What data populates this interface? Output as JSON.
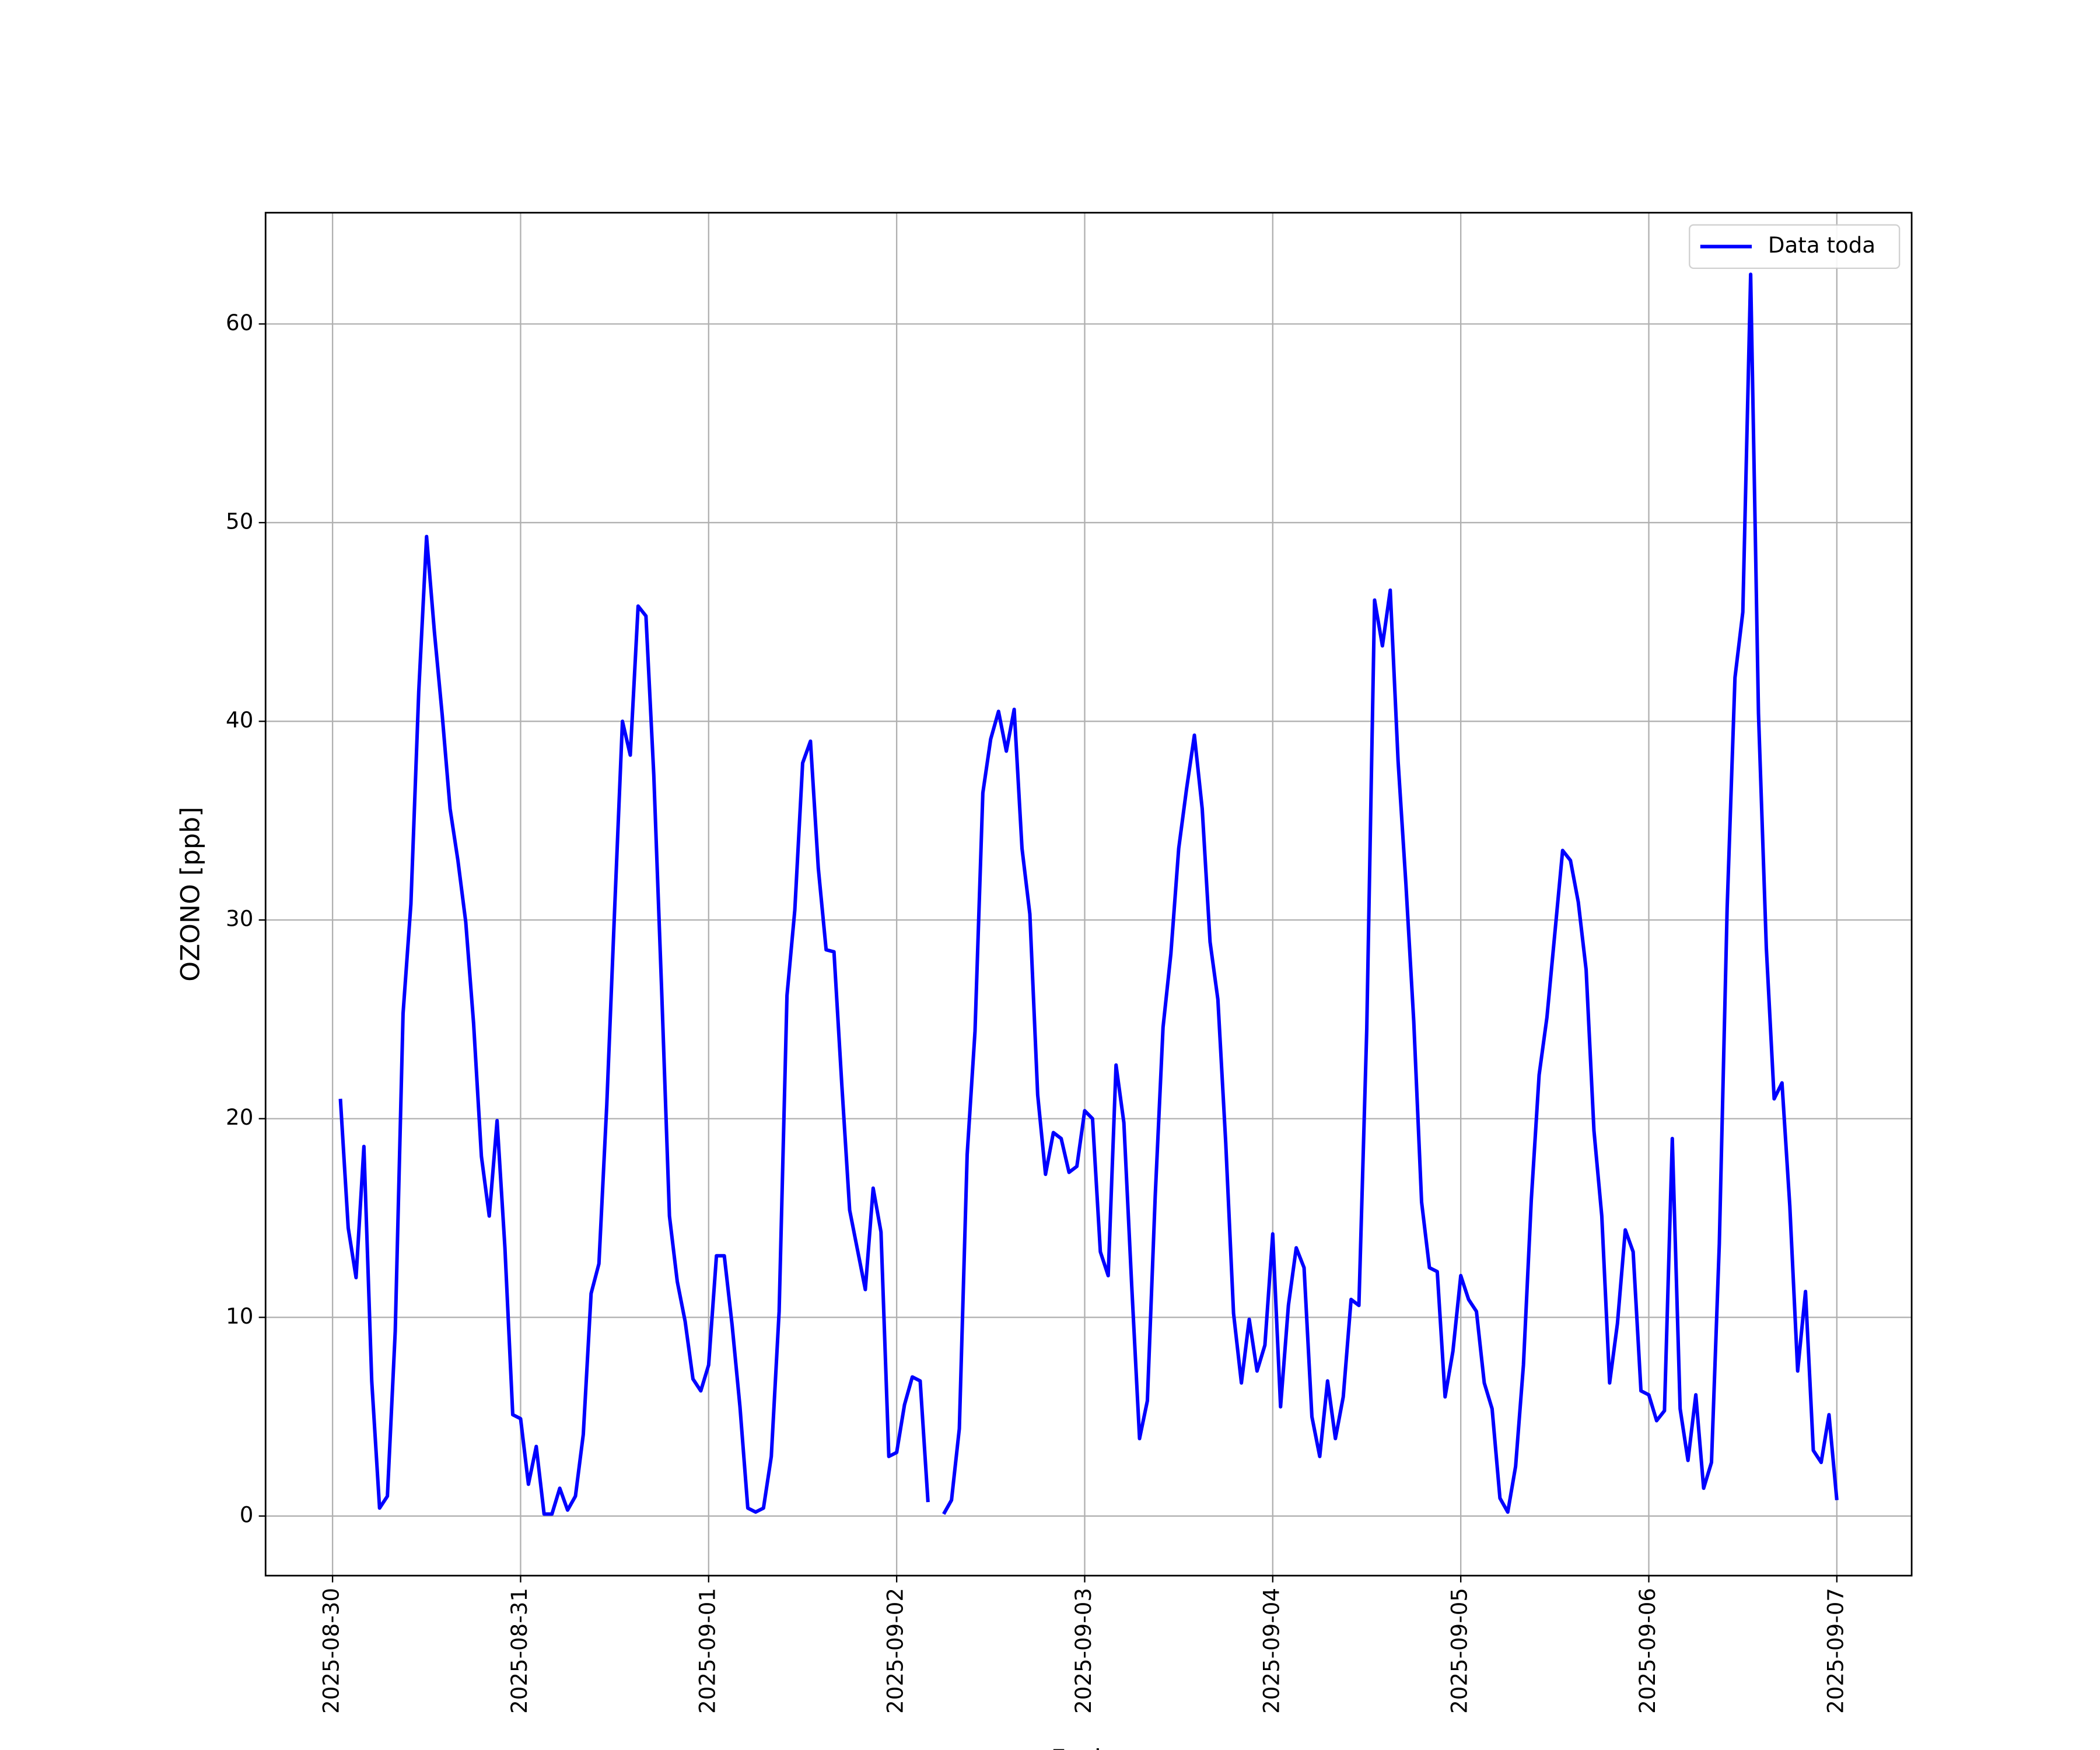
{
  "chart_data": {
    "type": "line",
    "x_label": "Fecha",
    "y_label": "OZONO [ppb]",
    "x": [
      "2025-08-30 01:00",
      "2025-08-30 02:00",
      "2025-08-30 03:00",
      "2025-08-30 04:00",
      "2025-08-30 05:00",
      "2025-08-30 06:00",
      "2025-08-30 07:00",
      "2025-08-30 08:00",
      "2025-08-30 09:00",
      "2025-08-30 10:00",
      "2025-08-30 11:00",
      "2025-08-30 12:00",
      "2025-08-30 13:00",
      "2025-08-30 14:00",
      "2025-08-30 15:00",
      "2025-08-30 16:00",
      "2025-08-30 17:00",
      "2025-08-30 18:00",
      "2025-08-30 19:00",
      "2025-08-30 20:00",
      "2025-08-30 21:00",
      "2025-08-30 22:00",
      "2025-08-30 23:00",
      "2025-08-31 00:00",
      "2025-08-31 01:00",
      "2025-08-31 02:00",
      "2025-08-31 03:00",
      "2025-08-31 04:00",
      "2025-08-31 05:00",
      "2025-08-31 06:00",
      "2025-08-31 07:00",
      "2025-08-31 08:00",
      "2025-08-31 09:00",
      "2025-08-31 10:00",
      "2025-08-31 11:00",
      "2025-08-31 12:00",
      "2025-08-31 13:00",
      "2025-08-31 14:00",
      "2025-08-31 15:00",
      "2025-08-31 16:00",
      "2025-08-31 17:00",
      "2025-08-31 18:00",
      "2025-08-31 19:00",
      "2025-08-31 20:00",
      "2025-08-31 21:00",
      "2025-08-31 22:00",
      "2025-08-31 23:00",
      "2025-09-01 00:00",
      "2025-09-01 01:00",
      "2025-09-01 02:00",
      "2025-09-01 03:00",
      "2025-09-01 04:00",
      "2025-09-01 05:00",
      "2025-09-01 06:00",
      "2025-09-01 07:00",
      "2025-09-01 08:00",
      "2025-09-01 09:00",
      "2025-09-01 10:00",
      "2025-09-01 11:00",
      "2025-09-01 12:00",
      "2025-09-01 13:00",
      "2025-09-01 14:00",
      "2025-09-01 15:00",
      "2025-09-01 16:00",
      "2025-09-01 17:00",
      "2025-09-01 18:00",
      "2025-09-01 19:00",
      "2025-09-01 20:00",
      "2025-09-01 21:00",
      "2025-09-01 22:00",
      "2025-09-01 23:00",
      "2025-09-02 00:00",
      "2025-09-02 01:00",
      "2025-09-02 02:00",
      "2025-09-02 03:00",
      "2025-09-02 04:00",
      "2025-09-02 05:00",
      "2025-09-02 06:00",
      "2025-09-02 07:00",
      "2025-09-02 08:00",
      "2025-09-02 09:00",
      "2025-09-02 10:00",
      "2025-09-02 11:00",
      "2025-09-02 12:00",
      "2025-09-02 13:00",
      "2025-09-02 14:00",
      "2025-09-02 15:00",
      "2025-09-02 16:00",
      "2025-09-02 17:00",
      "2025-09-02 18:00",
      "2025-09-02 19:00",
      "2025-09-02 20:00",
      "2025-09-02 21:00",
      "2025-09-02 22:00",
      "2025-09-02 23:00",
      "2025-09-03 00:00",
      "2025-09-03 01:00",
      "2025-09-03 02:00",
      "2025-09-03 03:00",
      "2025-09-03 04:00",
      "2025-09-03 05:00",
      "2025-09-03 06:00",
      "2025-09-03 07:00",
      "2025-09-03 08:00",
      "2025-09-03 09:00",
      "2025-09-03 10:00",
      "2025-09-03 11:00",
      "2025-09-03 12:00",
      "2025-09-03 13:00",
      "2025-09-03 14:00",
      "2025-09-03 15:00",
      "2025-09-03 16:00",
      "2025-09-03 17:00",
      "2025-09-03 18:00",
      "2025-09-03 19:00",
      "2025-09-03 20:00",
      "2025-09-03 21:00",
      "2025-09-03 22:00",
      "2025-09-03 23:00",
      "2025-09-04 00:00",
      "2025-09-04 01:00",
      "2025-09-04 02:00",
      "2025-09-04 03:00",
      "2025-09-04 04:00",
      "2025-09-04 05:00",
      "2025-09-04 06:00",
      "2025-09-04 07:00",
      "2025-09-04 08:00",
      "2025-09-04 09:00",
      "2025-09-04 10:00",
      "2025-09-04 11:00",
      "2025-09-04 12:00",
      "2025-09-04 13:00",
      "2025-09-04 14:00",
      "2025-09-04 15:00",
      "2025-09-04 16:00",
      "2025-09-04 17:00",
      "2025-09-04 18:00",
      "2025-09-04 19:00",
      "2025-09-04 20:00",
      "2025-09-04 21:00",
      "2025-09-04 22:00",
      "2025-09-04 23:00",
      "2025-09-05 00:00",
      "2025-09-05 01:00",
      "2025-09-05 02:00",
      "2025-09-05 03:00",
      "2025-09-05 04:00",
      "2025-09-05 05:00",
      "2025-09-05 06:00",
      "2025-09-05 07:00",
      "2025-09-05 08:00",
      "2025-09-05 09:00",
      "2025-09-05 10:00",
      "2025-09-05 11:00",
      "2025-09-05 12:00",
      "2025-09-05 13:00",
      "2025-09-05 14:00",
      "2025-09-05 15:00",
      "2025-09-05 16:00",
      "2025-09-05 17:00",
      "2025-09-05 18:00",
      "2025-09-05 19:00",
      "2025-09-05 20:00",
      "2025-09-05 21:00",
      "2025-09-05 22:00",
      "2025-09-05 23:00",
      "2025-09-06 00:00",
      "2025-09-06 01:00",
      "2025-09-06 02:00",
      "2025-09-06 03:00",
      "2025-09-06 04:00",
      "2025-09-06 05:00",
      "2025-09-06 06:00",
      "2025-09-06 07:00",
      "2025-09-06 08:00",
      "2025-09-06 09:00",
      "2025-09-06 10:00",
      "2025-09-06 11:00",
      "2025-09-06 12:00",
      "2025-09-06 13:00",
      "2025-09-06 14:00",
      "2025-09-06 15:00",
      "2025-09-06 16:00",
      "2025-09-06 17:00",
      "2025-09-06 18:00",
      "2025-09-06 19:00",
      "2025-09-06 20:00",
      "2025-09-06 21:00",
      "2025-09-06 22:00",
      "2025-09-06 23:00",
      "2025-09-07 00:00"
    ],
    "series": [
      {
        "name": "Data toda",
        "color": "#0000ff",
        "values": [
          21.0,
          14.5,
          12.0,
          18.6,
          6.8,
          0.4,
          1.0,
          9.3,
          25.3,
          30.8,
          41.5,
          49.3,
          44.5,
          40.3,
          35.6,
          33.0,
          29.9,
          24.8,
          18.1,
          15.1,
          19.9,
          13.5,
          5.1,
          4.9,
          1.6,
          3.5,
          0.1,
          0.1,
          1.4,
          0.3,
          1.0,
          4.1,
          11.2,
          12.7,
          20.7,
          30.5,
          40.0,
          38.3,
          45.8,
          45.3,
          37.3,
          26.5,
          15.1,
          11.8,
          9.8,
          6.9,
          6.3,
          7.6,
          13.1,
          13.1,
          9.6,
          5.5,
          0.4,
          0.2,
          0.4,
          3.0,
          10.3,
          26.2,
          30.5,
          37.9,
          39.0,
          32.6,
          28.5,
          28.4,
          21.7,
          15.4,
          13.4,
          11.4,
          16.5,
          14.3,
          3.0,
          3.2,
          5.6,
          7.0,
          6.8,
          0.7,
          null,
          0.1,
          0.8,
          4.4,
          18.2,
          24.4,
          36.4,
          39.1,
          40.5,
          38.5,
          40.6,
          33.6,
          30.3,
          21.2,
          17.2,
          19.3,
          19.0,
          17.3,
          17.6,
          20.4,
          20.0,
          13.3,
          12.1,
          22.7,
          19.8,
          11.6,
          3.9,
          5.8,
          16.1,
          24.6,
          28.3,
          33.6,
          36.6,
          39.3,
          35.6,
          28.9,
          26.0,
          18.8,
          10.2,
          6.7,
          9.9,
          7.3,
          8.6,
          14.2,
          5.5,
          10.6,
          13.5,
          12.5,
          5.0,
          3.0,
          6.8,
          3.9,
          6.0,
          10.9,
          10.6,
          24.5,
          46.1,
          43.8,
          46.6,
          38.0,
          31.8,
          24.9,
          15.8,
          12.5,
          12.3,
          6.0,
          8.3,
          12.1,
          10.9,
          10.3,
          6.7,
          5.4,
          0.9,
          0.2,
          2.5,
          7.6,
          15.9,
          22.2,
          25.1,
          29.3,
          33.5,
          33.0,
          30.9,
          27.5,
          19.4,
          15.1,
          6.7,
          9.7,
          14.4,
          13.3,
          6.3,
          6.1,
          4.8,
          5.3,
          19.0,
          5.4,
          2.8,
          6.1,
          1.4,
          2.7,
          13.7,
          30.6,
          42.2,
          45.5,
          62.5,
          40.4,
          28.6,
          21.0,
          21.8,
          15.6,
          7.3,
          11.3,
          3.3,
          2.7,
          5.1,
          0.8
        ]
      }
    ],
    "xlim": [
      "2025-08-29 15:27",
      "2025-09-07 09:33"
    ],
    "xticks": [
      "2025-08-30",
      "2025-08-31",
      "2025-09-01",
      "2025-09-02",
      "2025-09-03",
      "2025-09-04",
      "2025-09-05",
      "2025-09-06",
      "2025-09-07"
    ],
    "ylim": [
      -3.0,
      65.6
    ],
    "yticks": [
      0,
      10,
      20,
      30,
      40,
      50,
      60
    ],
    "grid": true,
    "legend": "upper right"
  }
}
